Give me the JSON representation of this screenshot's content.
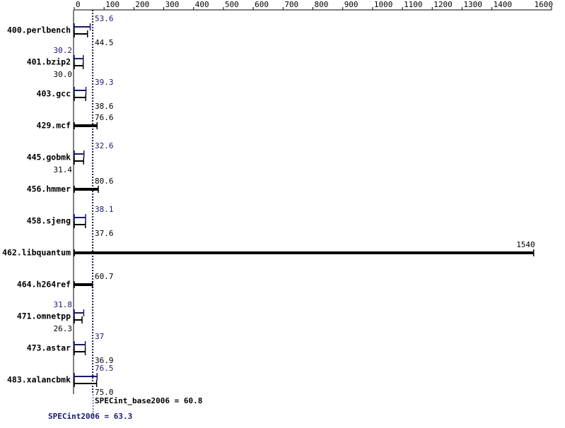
{
  "chart_data": {
    "type": "bar",
    "orientation": "horizontal",
    "categories": [
      "400.perlbench",
      "401.bzip2",
      "403.gcc",
      "429.mcf",
      "445.gobmk",
      "456.hmmer",
      "458.sjeng",
      "462.libquantum",
      "464.h264ref",
      "471.omnetpp",
      "473.astar",
      "483.xalancbmk"
    ],
    "series": [
      {
        "color": "#000000",
        "values": [
          44.5,
          30.0,
          38.6,
          76.6,
          31.4,
          80.6,
          37.6,
          1540,
          60.7,
          26.3,
          36.9,
          75.0
        ],
        "value_labels": [
          "44.5",
          "30.0",
          "38.6",
          "76.6",
          "31.4",
          "80.6",
          "37.6",
          "1540",
          "60.7",
          "26.3",
          "36.9",
          "75.0"
        ]
      },
      {
        "color": "#191970",
        "values": [
          53.6,
          30.2,
          39.3,
          null,
          32.6,
          null,
          38.1,
          null,
          null,
          31.8,
          37.0,
          76.5
        ]
      }
    ],
    "xlim": [
      0,
      1600
    ],
    "xticks": [
      0,
      100,
      200,
      300,
      400,
      500,
      600,
      700,
      800,
      900,
      1000,
      1100,
      1200,
      1300,
      1400,
      1600
    ],
    "base_summary": {
      "value": 60.8,
      "label": "SPECint_base2006 = 60.8",
      "color": "#000000"
    },
    "peak_summary": {
      "value": 63.3,
      "label": "SPECint2006 = 63.3",
      "color": "#191970"
    }
  }
}
